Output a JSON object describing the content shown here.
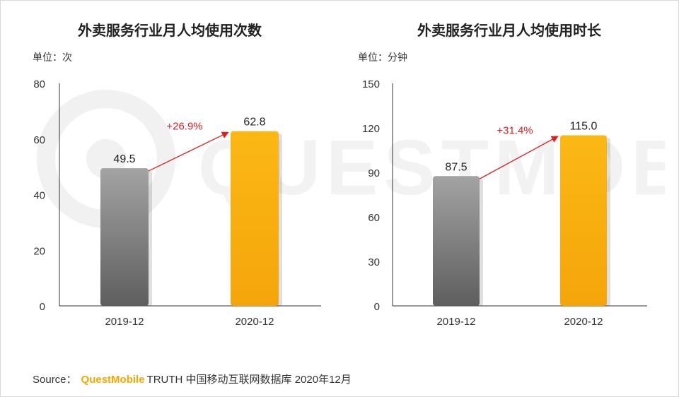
{
  "colors": {
    "bar_2019": "#7a7a7a",
    "bar_2020": "#f6ae0f",
    "growth": "#e02020",
    "axis": "#333333",
    "watermark": "#f0f0f0"
  },
  "watermark_text": "QUESTMOBILE",
  "chart_data": [
    {
      "type": "bar",
      "title": "外卖服务行业月人均使用次数",
      "unit_label": "单位：次",
      "categories": [
        "2019-12",
        "2020-12"
      ],
      "values": [
        49.5,
        62.8
      ],
      "value_labels": [
        "49.5",
        "62.8"
      ],
      "yticks": [
        "0",
        "20",
        "40",
        "60",
        "80"
      ],
      "ylim": [
        0,
        80
      ],
      "growth_label": "+26.9%"
    },
    {
      "type": "bar",
      "title": "外卖服务行业月人均使用时长",
      "unit_label": "单位：分钟",
      "categories": [
        "2019-12",
        "2020-12"
      ],
      "values": [
        87.5,
        115.0
      ],
      "value_labels": [
        "87.5",
        "115.0"
      ],
      "yticks": [
        "0",
        "30",
        "60",
        "90",
        "120",
        "150"
      ],
      "ylim": [
        0,
        150
      ],
      "growth_label": "+31.4%"
    }
  ],
  "source": {
    "prefix": "Source：",
    "brand": "QuestMobile",
    "suffix": "TRUTH 中国移动互联网数据库 2020年12月"
  }
}
